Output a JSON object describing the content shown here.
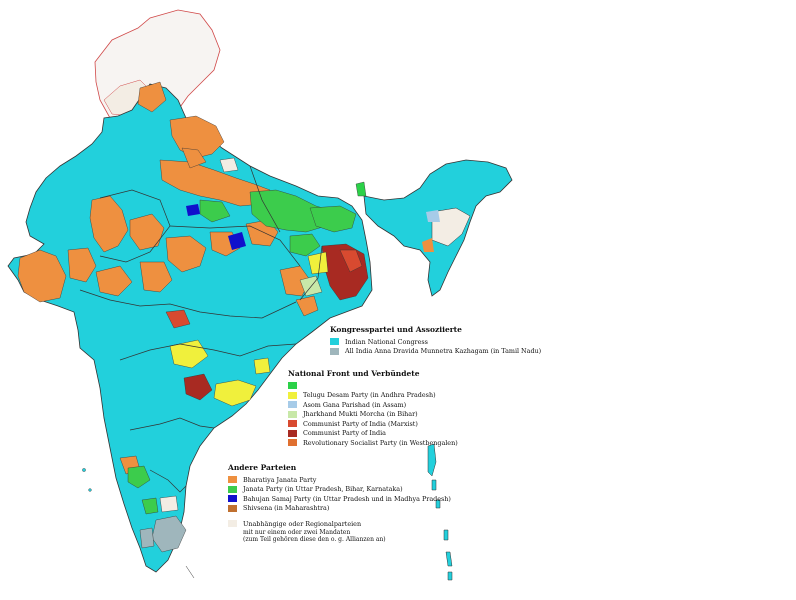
{
  "colors": {
    "congress": "#22d0dc",
    "aiadmk": "#9fb6bc",
    "national_front": "#2bd148",
    "tdp": "#f0f03c",
    "agp": "#a6cbe8",
    "jmm": "#c8e8a8",
    "cpim": "#d84a30",
    "cpi": "#a82a22",
    "rsp": "#e07030",
    "bjp": "#ee9040",
    "janata": "#3ccc4c",
    "bsp": "#1010cc",
    "shivsena": "#c07030",
    "independents": "#f3ede4",
    "boundary": "#333333",
    "border_red": "#d04848"
  },
  "legend": {
    "congress": {
      "title": "Kongresspartei und Assoziierte",
      "items": [
        {
          "label": "Indian National Congress",
          "color": "#22d0dc"
        },
        {
          "label": "All India Anna Dravida Munnetra Kazhagam (in Tamil Nadu)",
          "color": "#9fb6bc"
        }
      ]
    },
    "national_front": {
      "title": "National Front und Verbündete",
      "items": [
        {
          "label": "",
          "color": "#2bd148"
        },
        {
          "label": "Telugu Desam Party (in Andhra Pradesh)",
          "color": "#f0f03c"
        },
        {
          "label": "Asom Gana Parishad (in Assam)",
          "color": "#a6cbe8"
        },
        {
          "label": "Jharkhand Mukti Morcha (in Bihar)",
          "color": "#c8e8a8"
        },
        {
          "label": "Communist Party of India (Marxist)",
          "color": "#d84a30"
        },
        {
          "label": "Communist Party of India",
          "color": "#a82a22"
        },
        {
          "label": "Revolutionary Socialist Party (in Westbengalen)",
          "color": "#e07030"
        }
      ]
    },
    "other": {
      "title": "Andere Parteien",
      "items": [
        {
          "label": "Bharatiya Janata Party",
          "color": "#ee9040"
        },
        {
          "label": "Janata Party (in Uttar Pradesh, Bihar, Karnataka)",
          "color": "#3ccc4c"
        },
        {
          "label": "Bahujan Samaj Party (in Uttar Pradesh und in Madhya Pradesh)",
          "color": "#1010cc"
        },
        {
          "label": "Shivsena (in Maharashtra)",
          "color": "#c07030"
        }
      ],
      "independents": {
        "color": "#f3ede4",
        "lines": [
          "Unabhängige oder Regionalparteien",
          "mit nur einem oder zwei Mandaten",
          "(zum Teil gehören diese den o. g. Allianzen an)"
        ]
      }
    }
  }
}
